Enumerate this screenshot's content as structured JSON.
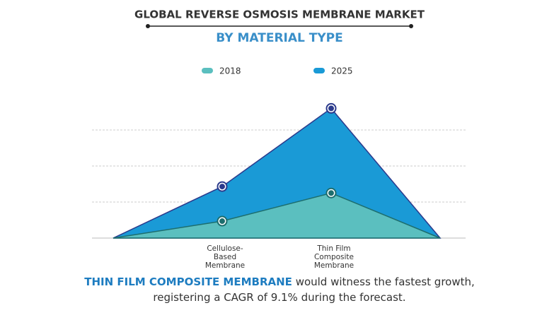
{
  "chart_data": {
    "type": "area",
    "title": "GLOBAL REVERSE OSMOSIS MEMBRANE MARKET",
    "subtitle": "BY MATERIAL TYPE",
    "categories": [
      null,
      "Cellulose-Based Membrane",
      "Thin Film Composite Membrane",
      null
    ],
    "series": [
      {
        "name": "2018",
        "color": "#5bbfbf",
        "values": [
          0,
          0.47,
          1.25,
          0
        ]
      },
      {
        "name": "2025",
        "color": "#1a9ad6",
        "values": [
          0,
          1.43,
          3.6,
          0
        ]
      }
    ],
    "ylim": [
      0,
      4
    ],
    "yticks": [
      0,
      1,
      2,
      3
    ],
    "grid": true,
    "legend": "top",
    "annotation": {
      "highlight": "THIN FILM COMPOSITE MEMBRANE",
      "text": " would witness the fastest growth, registering a CAGR of 9.1% during the forecast."
    }
  }
}
